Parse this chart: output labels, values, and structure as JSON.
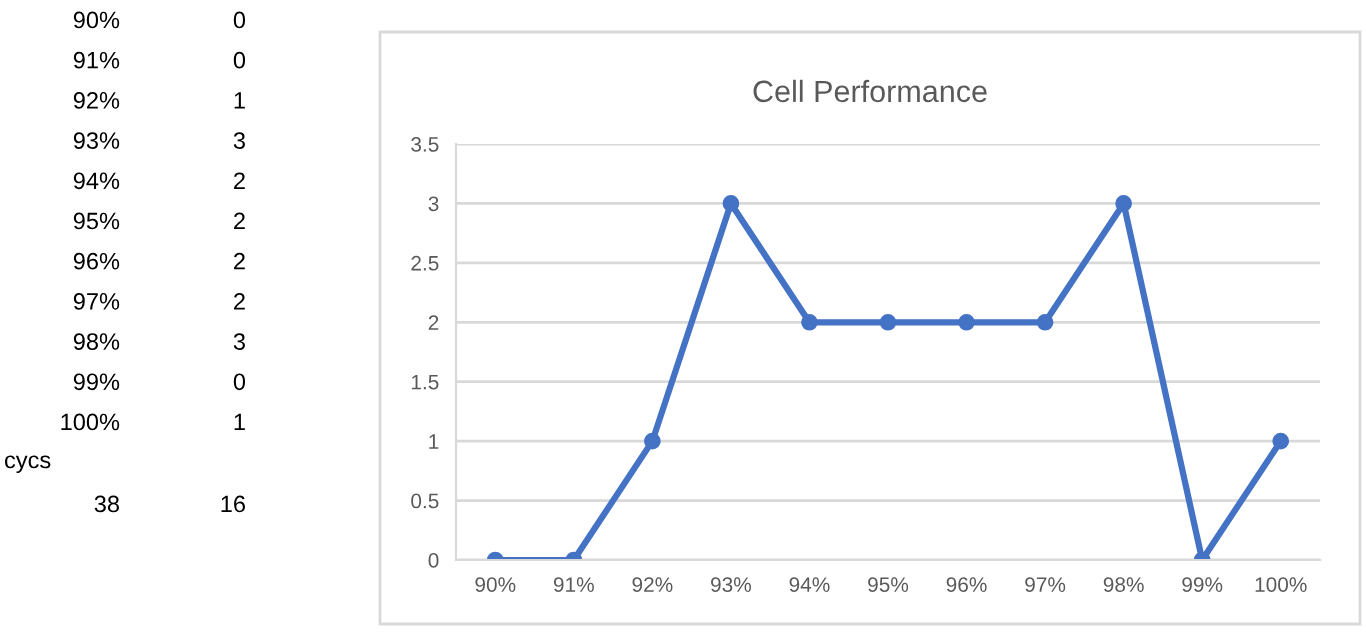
{
  "chart_data": {
    "type": "line",
    "title": "Cell Performance",
    "categories": [
      "90%",
      "91%",
      "92%",
      "93%",
      "94%",
      "95%",
      "96%",
      "97%",
      "98%",
      "99%",
      "100%"
    ],
    "series": [
      {
        "color": "#4472c4",
        "values": [
          0,
          0,
          1,
          3,
          2,
          2,
          2,
          2,
          3,
          0,
          1
        ]
      }
    ],
    "ylim": [
      0,
      3.5
    ],
    "yticks": [
      0,
      0.5,
      1,
      1.5,
      2,
      2.5,
      3,
      3.5
    ],
    "grid": "y",
    "marker": "circle",
    "line_style": "solid",
    "annotations": [
      "90%",
      "0",
      "91%",
      "0",
      "92%",
      "1",
      "93%",
      "3",
      "94%",
      "2",
      "95%",
      "2",
      "96%",
      "2",
      "97%",
      "2",
      "98%",
      "3",
      "99%",
      "0",
      "100%",
      "1",
      "cycs",
      "38",
      "16"
    ]
  }
}
